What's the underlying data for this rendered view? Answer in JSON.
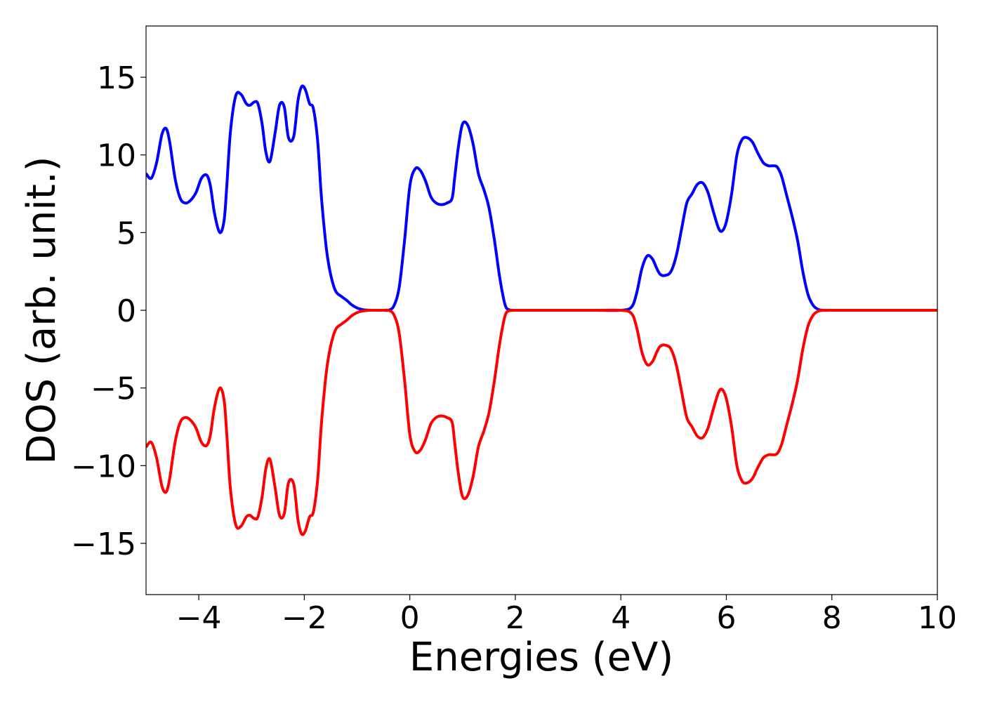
{
  "chart_data": {
    "type": "line",
    "title": "",
    "xlabel": "Energies (eV)",
    "ylabel": "DOS (arb. unit.)",
    "xlim": [
      -5,
      10
    ],
    "ylim": [
      -18.3,
      18.3
    ],
    "grid": false,
    "xticks": [
      -4,
      -2,
      0,
      2,
      4,
      6,
      8,
      10
    ],
    "xtick_labels": [
      "−4",
      "−2",
      "0",
      "2",
      "4",
      "6",
      "8",
      "10"
    ],
    "yticks": [
      15,
      10,
      5,
      0,
      -5,
      -10,
      -15
    ],
    "ytick_labels": [
      "15",
      "10",
      "5",
      "0",
      "−5",
      "−10",
      "−15"
    ],
    "series": [
      {
        "color": "#0000ff",
        "x": [
          -5.0,
          -4.9,
          -4.8,
          -4.7,
          -4.62,
          -4.55,
          -4.45,
          -4.35,
          -4.25,
          -4.15,
          -4.05,
          -3.95,
          -3.85,
          -3.78,
          -3.7,
          -3.6,
          -3.52,
          -3.47,
          -3.4,
          -3.3,
          -3.2,
          -3.1,
          -3.03,
          -2.95,
          -2.88,
          -2.8,
          -2.73,
          -2.65,
          -2.55,
          -2.47,
          -2.38,
          -2.3,
          -2.2,
          -2.12,
          -2.05,
          -1.98,
          -1.9,
          -1.83,
          -1.75,
          -1.68,
          -1.6,
          -1.55,
          -1.48,
          -1.4,
          -1.3,
          -1.2,
          -1.1,
          -1.0,
          -0.9,
          -0.8,
          -0.7,
          -0.6,
          -0.5,
          -0.4,
          -0.3,
          -0.2,
          -0.1,
          0.0,
          0.1,
          0.2,
          0.3,
          0.4,
          0.5,
          0.6,
          0.7,
          0.8,
          0.85,
          0.92,
          1.0,
          1.1,
          1.2,
          1.3,
          1.4,
          1.5,
          1.6,
          1.7,
          1.78,
          1.83,
          1.9,
          2.0,
          2.1,
          2.2,
          2.3,
          2.4,
          2.5,
          2.6,
          2.7,
          2.8,
          3.0,
          3.5,
          4.0,
          4.2,
          4.3,
          4.4,
          4.5,
          4.6,
          4.68,
          4.75,
          4.85,
          4.95,
          5.05,
          5.15,
          5.25,
          5.35,
          5.45,
          5.55,
          5.65,
          5.75,
          5.85,
          5.92,
          6.0,
          6.1,
          6.2,
          6.3,
          6.4,
          6.5,
          6.6,
          6.7,
          6.8,
          6.9,
          6.97,
          7.05,
          7.15,
          7.25,
          7.35,
          7.45,
          7.55,
          7.65,
          7.75,
          7.85,
          7.95,
          8.05,
          8.15,
          8.25,
          8.35,
          8.45,
          8.55,
          8.7,
          9.0,
          9.5,
          10.0
        ],
        "y": [
          8.8,
          8.5,
          9.5,
          11.3,
          11.7,
          10.8,
          8.5,
          7.2,
          6.9,
          7.1,
          7.6,
          8.5,
          8.7,
          8.0,
          6.2,
          5.0,
          5.8,
          8.0,
          11.5,
          13.8,
          13.9,
          13.3,
          13.2,
          13.4,
          13.3,
          12.0,
          10.2,
          9.6,
          11.5,
          13.2,
          13.1,
          11.1,
          11.2,
          13.5,
          14.4,
          14.2,
          13.3,
          13.0,
          11.0,
          7.5,
          4.5,
          3.2,
          2.0,
          1.2,
          0.9,
          0.65,
          0.35,
          0.15,
          0.05,
          0.01,
          0.0,
          0.0,
          0.0,
          0.01,
          0.3,
          1.5,
          4.5,
          8.0,
          9.1,
          9.0,
          8.3,
          7.3,
          6.9,
          6.8,
          6.9,
          7.2,
          8.5,
          10.5,
          12.0,
          11.9,
          10.7,
          8.8,
          7.8,
          6.6,
          4.6,
          2.2,
          0.7,
          0.15,
          0.02,
          0.0,
          0.0,
          0.0,
          0.0,
          0.0,
          0.0,
          0.0,
          0.0,
          0.0,
          0.0,
          0.0,
          0.0,
          0.2,
          1.1,
          2.7,
          3.5,
          3.3,
          2.7,
          2.3,
          2.25,
          2.5,
          3.5,
          5.2,
          6.9,
          7.5,
          8.1,
          8.2,
          7.6,
          6.4,
          5.3,
          5.1,
          5.7,
          7.5,
          10.0,
          11.0,
          11.1,
          10.8,
          10.1,
          9.5,
          9.3,
          9.3,
          9.2,
          8.6,
          7.3,
          6.0,
          4.5,
          2.5,
          1.0,
          0.3,
          0.05,
          0.0,
          0.0,
          0.0,
          0.0,
          0.0,
          0.0,
          0.0,
          0.0,
          0.0,
          0.0,
          0.0,
          0.0
        ]
      },
      {
        "color": "#ff0000",
        "mirror_of_series": 0,
        "note_sign": -1
      }
    ]
  }
}
